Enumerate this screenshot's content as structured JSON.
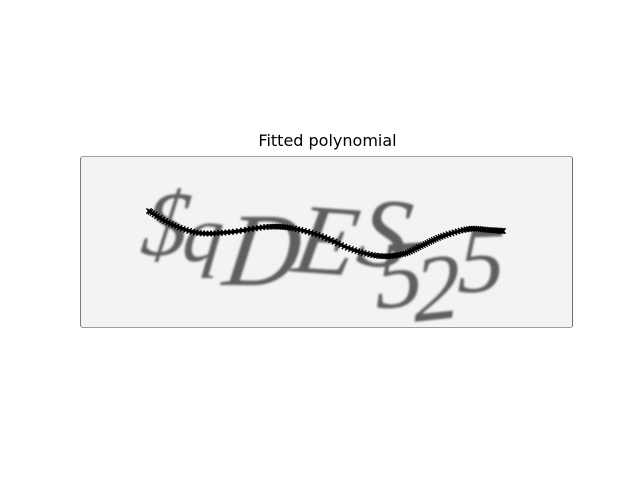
{
  "figure": {
    "title": "Fitted polynomial"
  },
  "captcha": {
    "characters": [
      "$",
      "q",
      "D",
      "E",
      "S",
      "5",
      "2",
      "5"
    ],
    "text_color": "#5f5f5f",
    "background_color": "#f3f3f3"
  },
  "curve": {
    "color": "#000000",
    "marker": "x"
  }
}
